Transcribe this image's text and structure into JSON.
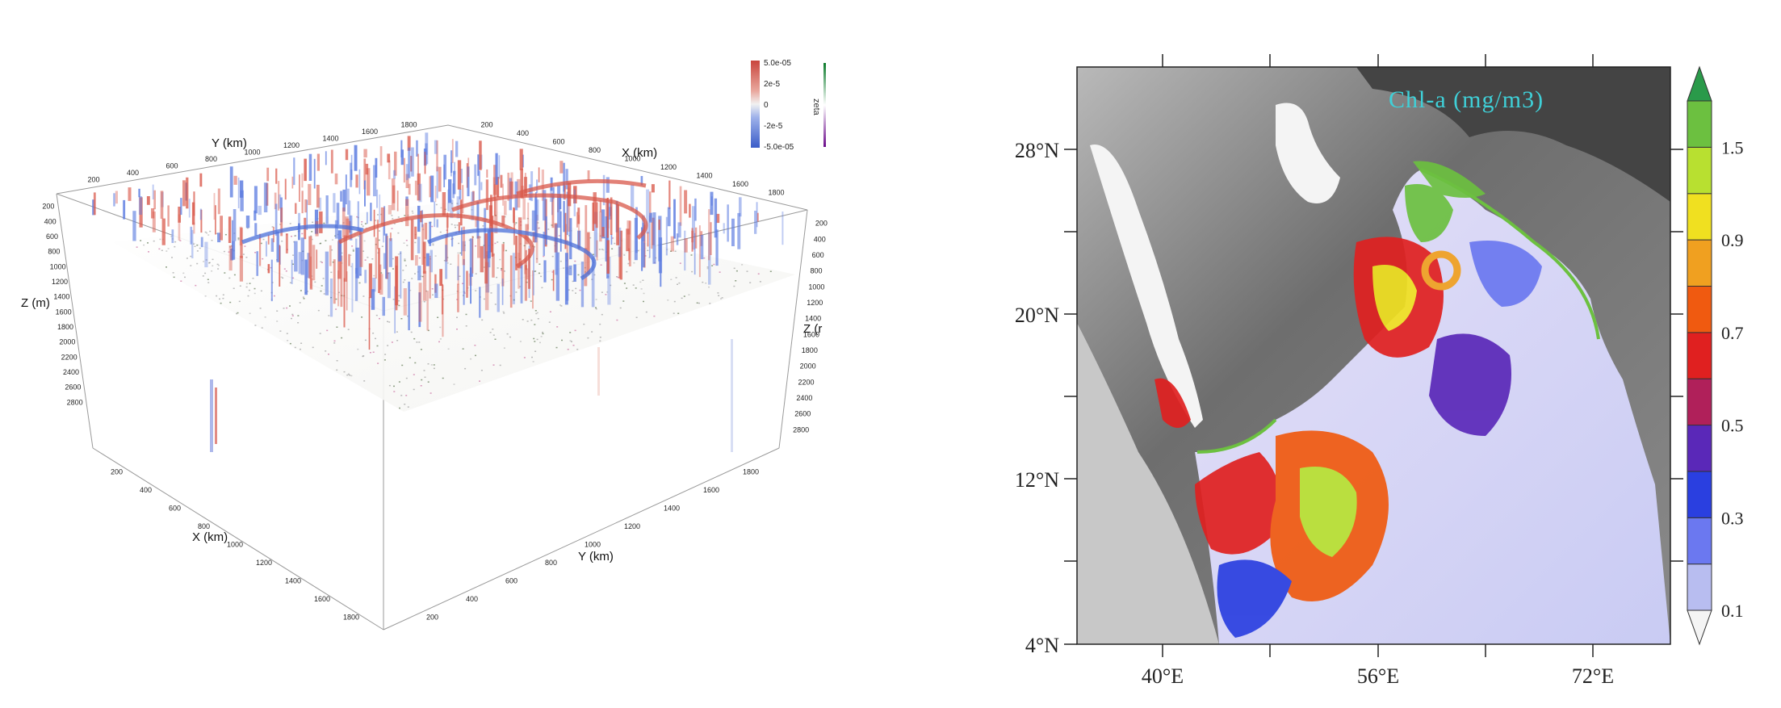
{
  "left_figure": {
    "y_axis_top_label": "Y (km)",
    "x_axis_top_label": "X (km)",
    "z_axis_left_label": "Z (m)",
    "z_axis_right_label": "Z (r",
    "x_axis_bottom_label": "X (km)",
    "y_axis_bottom_label": "Y (km)",
    "top_back_ticks": [
      "200",
      "400",
      "600",
      "800",
      "1000",
      "1200",
      "1400",
      "1600",
      "1800"
    ],
    "top_right_ticks": [
      "200",
      "400",
      "600",
      "800",
      "1000",
      "1200",
      "1400",
      "1600",
      "1800"
    ],
    "z_left_ticks": [
      "200",
      "400",
      "600",
      "800",
      "1000",
      "1200",
      "1400",
      "1600",
      "1800",
      "2000",
      "2200",
      "2400",
      "2600",
      "2800"
    ],
    "z_right_ticks": [
      "200",
      "400",
      "600",
      "800",
      "1000",
      "1200",
      "1400",
      "1600",
      "1800",
      "2000",
      "2200",
      "2400",
      "2600",
      "2800"
    ],
    "bottom_x_ticks": [
      "200",
      "400",
      "600",
      "800",
      "1000",
      "1200",
      "1400",
      "1600",
      "1800"
    ],
    "bottom_y_ticks": [
      "200",
      "400",
      "600",
      "800",
      "1000",
      "1200",
      "1400",
      "1600",
      "1800"
    ],
    "colorbar": {
      "title": "zeta",
      "ticks": [
        "5.0e-05",
        "2e-5",
        "0",
        "-2e-5",
        "-5.0e-05"
      ],
      "color_high": "#d9584a",
      "color_low": "#4a6fd9"
    }
  },
  "right_figure": {
    "title": "Chl-a (mg/m3)",
    "title_color": "#3fd0d8",
    "lat_ticks": [
      "28°N",
      "20°N",
      "12°N",
      "4°N"
    ],
    "lon_ticks": [
      "40°E",
      "56°E",
      "72°E"
    ],
    "colorbar": {
      "ticks": [
        "1.5",
        "0.9",
        "0.7",
        "0.5",
        "0.3",
        "0.1"
      ],
      "colors": [
        "#f4f4f4",
        "#b8bdf0",
        "#6b78f0",
        "#2a3fe0",
        "#5a28b8",
        "#b0205a",
        "#e02020",
        "#f05a10",
        "#f0a020",
        "#f0e020",
        "#b8e030",
        "#6cc040",
        "#2a9a4a"
      ]
    }
  }
}
